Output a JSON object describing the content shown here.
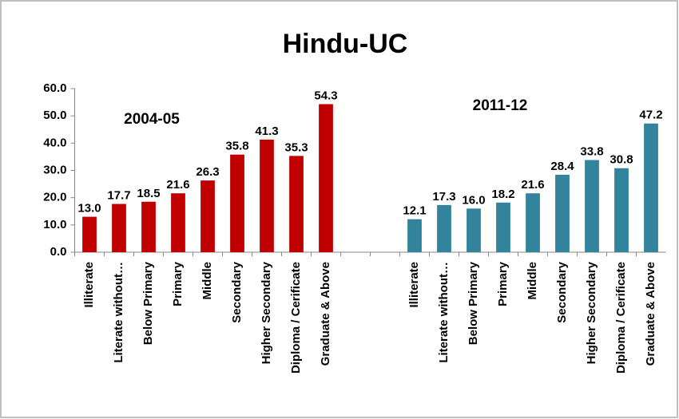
{
  "chart_data": {
    "type": "bar",
    "title": "Hindu-UC",
    "categories": [
      "Illiterate",
      "Literate without…",
      "Below Primary",
      "Primary",
      "Middle",
      "Secondary",
      "Higher Secondary",
      "Diploma / Cerificate",
      "Graduate & Above",
      null,
      null,
      "Illiterate",
      "Literate without…",
      "Below Primary",
      "Primary",
      "Middle",
      "Secondary",
      "Higher Secondary",
      "Diploma / Cerificate",
      "Graduate & Above"
    ],
    "series": [
      {
        "name": "2004-05",
        "color": "#c00000",
        "values": [
          13.0,
          17.7,
          18.5,
          21.6,
          26.3,
          35.8,
          41.3,
          35.3,
          54.3,
          null,
          null,
          null,
          null,
          null,
          null,
          null,
          null,
          null,
          null,
          null
        ],
        "value_labels": [
          "13.0",
          "17.7",
          "18.5",
          "21.6",
          "26.3",
          "35.8",
          "41.3",
          "35.3",
          "54.3",
          null,
          null,
          null,
          null,
          null,
          null,
          null,
          null,
          null,
          null,
          null
        ]
      },
      {
        "name": "2011-12",
        "color": "#31849b",
        "values": [
          null,
          null,
          null,
          null,
          null,
          null,
          null,
          null,
          null,
          null,
          null,
          12.1,
          17.3,
          16.0,
          18.2,
          21.6,
          28.4,
          33.8,
          30.8,
          47.2
        ],
        "value_labels": [
          null,
          null,
          null,
          null,
          null,
          null,
          null,
          null,
          null,
          null,
          null,
          "12.1",
          "17.3",
          "16.0",
          "18.2",
          "21.6",
          "28.4",
          "33.8",
          "30.8",
          "47.2"
        ]
      }
    ],
    "ylim": [
      0,
      60
    ],
    "yticks": [
      {
        "value": 0,
        "label": "0.0"
      },
      {
        "value": 10,
        "label": "10.0"
      },
      {
        "value": 20,
        "label": "20.0"
      },
      {
        "value": 30,
        "label": "30.0"
      },
      {
        "value": 40,
        "label": "40.0"
      },
      {
        "value": 50,
        "label": "50.0"
      },
      {
        "value": 60,
        "label": "60.0"
      }
    ],
    "grid": false
  }
}
